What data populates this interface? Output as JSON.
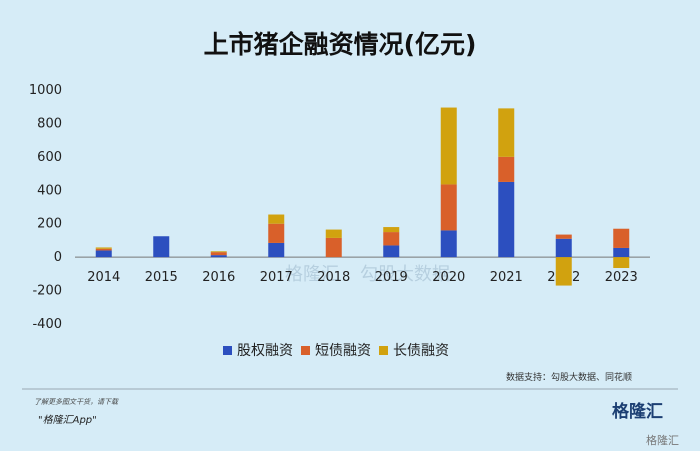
{
  "chart_data": {
    "type": "bar",
    "stacked": true,
    "title": "上市猪企融资情况(亿元)",
    "categories": [
      "2014",
      "2015",
      "2016",
      "2017",
      "2018",
      "2019",
      "2020",
      "2021",
      "2022",
      "2023"
    ],
    "series": [
      {
        "name": "股权融资",
        "color": "#2c4fbf",
        "values": [
          40,
          125,
          12,
          85,
          0,
          70,
          160,
          450,
          110,
          55
        ]
      },
      {
        "name": "短债融资",
        "color": "#d9602a",
        "values": [
          10,
          0,
          18,
          115,
          115,
          80,
          275,
          150,
          25,
          115
        ]
      },
      {
        "name": "长债融资",
        "color": "#d1a20f",
        "values": [
          8,
          0,
          5,
          55,
          50,
          30,
          460,
          290,
          -170,
          -65
        ]
      }
    ],
    "ylim": [
      -400,
      1000
    ],
    "yticks": [
      -400,
      -200,
      0,
      200,
      400,
      600,
      800,
      1000
    ],
    "xlabel": "",
    "ylabel": "",
    "legend": "bottom",
    "grid": false
  },
  "footer": {
    "source": "数据支持：勾股大数据、同花顺",
    "download_note": "了解更多图文干货，请下载",
    "app_name": "\"格隆汇App\"",
    "brand": "格隆汇",
    "corner": "格隆汇",
    "watermark_1": "格隆汇",
    "watermark_2": "勾股大数据"
  }
}
